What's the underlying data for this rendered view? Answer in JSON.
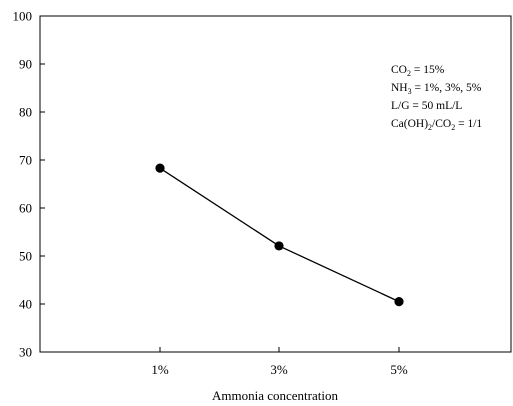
{
  "chart_data": {
    "type": "line",
    "title": "",
    "xlabel": "Ammonia concentration",
    "ylabel": "",
    "categories": [
      "1%",
      "3%",
      "5%"
    ],
    "series": [
      {
        "values": [
          68.3,
          52.1,
          40.5
        ]
      }
    ],
    "ylim": [
      30,
      100
    ],
    "yticks": [
      30,
      40,
      50,
      60,
      70,
      80,
      90,
      100
    ],
    "grid": false,
    "legend": "none",
    "annotations": [
      {
        "id": "co2",
        "parts": [
          {
            "t": "CO"
          },
          {
            "t": "2",
            "sub": true
          },
          {
            "t": " = 15%"
          }
        ]
      },
      {
        "id": "nh3",
        "parts": [
          {
            "t": "NH"
          },
          {
            "t": "3",
            "sub": true
          },
          {
            "t": " = 1%, 3%, 5%"
          }
        ]
      },
      {
        "id": "lg",
        "parts": [
          {
            "t": "L/G = 50 mL/L"
          }
        ]
      },
      {
        "id": "ratio",
        "parts": [
          {
            "t": "Ca(OH)"
          },
          {
            "t": "2",
            "sub": true
          },
          {
            "t": "/CO"
          },
          {
            "t": "2",
            "sub": true
          },
          {
            "t": " = 1/1"
          }
        ]
      }
    ],
    "colors": {
      "line": "#000000",
      "marker": "#000000",
      "axis": "#000000"
    }
  }
}
